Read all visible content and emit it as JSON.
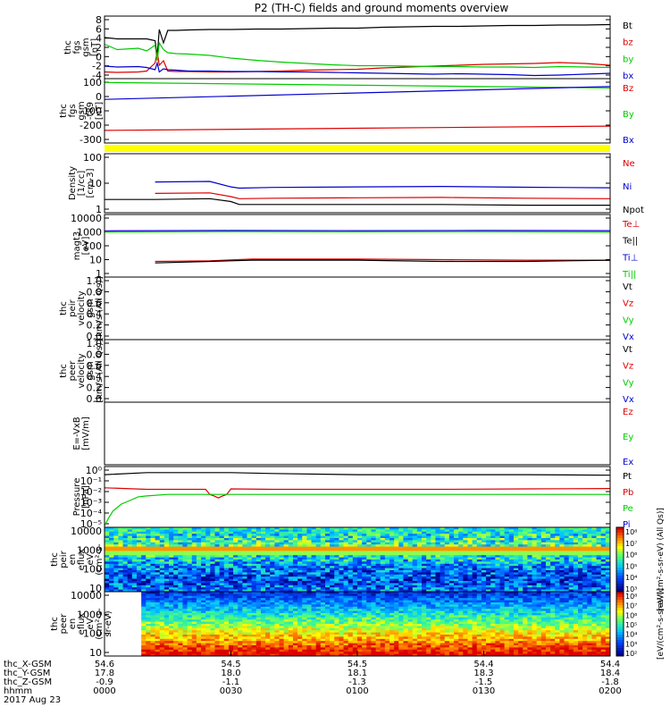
{
  "title": "P2 (TH-C) fields and ground moments overview",
  "colors": {
    "black": "#000000",
    "red": "#dd0000",
    "green": "#00cc00",
    "blue": "#0000cc",
    "yellow": "#ffff00"
  },
  "chart_data": [
    {
      "id": "fgs-nt",
      "type": "line",
      "ylabel_lines": [
        "thc",
        "fgs",
        "gsm",
        "[nT]"
      ],
      "yticks": [
        "8",
        "6",
        "4",
        "2",
        "0",
        "-2",
        "-4"
      ],
      "ylim": [
        -5,
        9
      ],
      "series": [
        {
          "name": "Bt",
          "color": "black",
          "x": [
            0,
            3,
            10,
            12,
            12.5,
            13,
            14,
            15,
            17,
            20,
            25,
            30,
            36,
            42,
            48,
            54,
            60,
            66,
            72,
            78,
            84,
            90,
            96,
            102,
            108,
            114,
            120
          ],
          "y": [
            4.2,
            3.9,
            3.9,
            3.5,
            0,
            6,
            3,
            5.8,
            5.8,
            5.9,
            6,
            6,
            6.1,
            6.1,
            6.2,
            6.3,
            6.3,
            6.5,
            6.6,
            6.7,
            6.7,
            6.8,
            6.9,
            6.9,
            7,
            7,
            7.1
          ]
        },
        {
          "name": "bz",
          "color": "red",
          "x": [
            0,
            3,
            8,
            10,
            12,
            12.5,
            13,
            14,
            15,
            17,
            20,
            25,
            30,
            36,
            42,
            48,
            54,
            60,
            66,
            72,
            78,
            84,
            90,
            96,
            102,
            108,
            114,
            120
          ],
          "y": [
            -3.5,
            -3.6,
            -3.5,
            -3.3,
            -1.5,
            1,
            -2,
            -1,
            -3.3,
            -3.4,
            -3.4,
            -3.5,
            -3.5,
            -3.4,
            -3.3,
            -3.1,
            -3,
            -2.9,
            -2.6,
            -2.4,
            -2.2,
            -2,
            -1.8,
            -1.7,
            -1.6,
            -1.4,
            -1.6,
            -2
          ]
        },
        {
          "name": "by",
          "color": "green",
          "x": [
            0,
            3,
            8,
            10,
            12,
            12.5,
            13,
            14,
            15,
            17,
            20,
            25,
            30,
            36,
            42,
            48,
            54,
            60,
            66,
            72,
            78,
            84,
            90,
            96,
            102,
            108,
            114,
            120
          ],
          "y": [
            2.7,
            1.5,
            1.8,
            1.2,
            2.5,
            -1,
            3,
            1.5,
            0.8,
            0.6,
            0.5,
            0.2,
            -0.4,
            -0.9,
            -1.3,
            -1.6,
            -1.9,
            -2.1,
            -2.1,
            -2.2,
            -2.3,
            -2.3,
            -2.4,
            -2.4,
            -2.5,
            -2.3,
            -2.4,
            -2.5
          ]
        },
        {
          "name": "bx",
          "color": "blue",
          "x": [
            0,
            3,
            8,
            10,
            12,
            12.5,
            13,
            14,
            15,
            17,
            20,
            25,
            30,
            36,
            42,
            48,
            54,
            60,
            66,
            72,
            78,
            84,
            90,
            96,
            102,
            108,
            114,
            120
          ],
          "y": [
            -2.2,
            -2.4,
            -2.3,
            -2.5,
            -3,
            -1.5,
            -3.5,
            -2.8,
            -3,
            -3.1,
            -3.3,
            -3.3,
            -3.4,
            -3.4,
            -3.5,
            -3.5,
            -3.6,
            -3.7,
            -3.8,
            -3.9,
            -4,
            -3.9,
            -4,
            -4.1,
            -4.3,
            -4.2,
            -4,
            -3.8
          ]
        }
      ]
    },
    {
      "id": "fgs-t89",
      "type": "line",
      "ylabel_lines": [
        "thc",
        "fgs",
        "gsm",
        "-t89",
        "[nT]"
      ],
      "yticks": [
        "100",
        "0",
        "-100",
        "-200",
        "-300"
      ],
      "ylim": [
        -340,
        110
      ],
      "series": [
        {
          "name": "Bz",
          "color": "red",
          "x": [
            0,
            120
          ],
          "y": [
            -252,
            -222
          ]
        },
        {
          "name": "By",
          "color": "green",
          "x": [
            0,
            120
          ],
          "y": [
            83,
            45
          ]
        },
        {
          "name": "Bx",
          "color": "blue",
          "x": [
            0,
            120
          ],
          "y": [
            -35,
            55
          ]
        }
      ]
    },
    {
      "id": "density",
      "type": "line",
      "log": true,
      "ylabel_lines": [
        "Density",
        "[1/cc]",
        "[cm-3]"
      ],
      "yticks": [
        "100",
        "10",
        "1"
      ],
      "ylim": [
        1,
        100
      ],
      "series": [
        {
          "name": "Ne",
          "color": "red",
          "x": [
            12,
            25,
            30,
            32,
            40,
            60,
            80,
            100,
            120
          ],
          "y": [
            4.5,
            4.7,
            3.5,
            3,
            3.1,
            3.2,
            3.3,
            3.1,
            3
          ]
        },
        {
          "name": "Ni",
          "color": "blue",
          "x": [
            12,
            25,
            30,
            32,
            40,
            60,
            80,
            100,
            120
          ],
          "y": [
            11,
            11.5,
            7.5,
            6.8,
            7.2,
            7.5,
            7.8,
            7.3,
            7
          ]
        },
        {
          "name": "Npot",
          "color": "black",
          "x": [
            0,
            12,
            25,
            30,
            32,
            40,
            60,
            80,
            100,
            120
          ],
          "y": [
            2.8,
            2.8,
            3,
            2.4,
            1.9,
            1.9,
            1.9,
            1.9,
            1.8,
            1.8
          ]
        }
      ]
    },
    {
      "id": "temperature",
      "type": "line",
      "log": true,
      "ylabel_lines": [
        "magt3",
        "[eV]"
      ],
      "yticks": [
        "10000",
        "1000",
        "100",
        "10",
        "1"
      ],
      "ylim": [
        1,
        10000
      ],
      "series": [
        {
          "name": "Te⊥",
          "color": "red",
          "x": [
            12,
            25,
            35,
            60,
            80,
            100,
            120
          ],
          "y": [
            10,
            11,
            14,
            14,
            13,
            12,
            12
          ]
        },
        {
          "name": "Te||",
          "color": "black",
          "x": [
            12,
            25,
            35,
            60,
            80,
            100,
            120
          ],
          "y": [
            8,
            10,
            12,
            12,
            10,
            10,
            12
          ]
        },
        {
          "name": "Ti⊥",
          "color": "blue",
          "x": [
            0,
            30,
            60,
            90,
            120
          ],
          "y": [
            900,
            950,
            930,
            950,
            920
          ]
        },
        {
          "name": "Ti||",
          "color": "green",
          "x": [
            0,
            30,
            60,
            90,
            120
          ],
          "y": [
            750,
            800,
            780,
            790,
            760
          ]
        }
      ]
    },
    {
      "id": "peir-velocity",
      "type": "line",
      "ylabel_lines": [
        "thc",
        "peir",
        "velocity",
        "gsm",
        "[km/s (All Qs)]"
      ],
      "yticks": [
        "1.0",
        "0.8",
        "0.6",
        "0.4",
        "0.2",
        "0.0"
      ],
      "ylim": [
        0,
        1
      ],
      "series": [
        {
          "name": "Vt",
          "color": "black",
          "x": [],
          "y": []
        },
        {
          "name": "Vz",
          "color": "red",
          "x": [],
          "y": []
        },
        {
          "name": "Vy",
          "color": "green",
          "x": [],
          "y": []
        },
        {
          "name": "Vx",
          "color": "blue",
          "x": [],
          "y": []
        }
      ]
    },
    {
      "id": "peer-velocity",
      "type": "line",
      "ylabel_lines": [
        "thc",
        "peer",
        "velocity",
        "gsm",
        "[km/s (All Qs)]"
      ],
      "yticks": [
        "1.0",
        "0.8",
        "0.6",
        "0.4",
        "0.2",
        "0.0"
      ],
      "ylim": [
        0,
        1
      ],
      "series": [
        {
          "name": "Vt",
          "color": "black",
          "x": [],
          "y": []
        },
        {
          "name": "Vz",
          "color": "red",
          "x": [],
          "y": []
        },
        {
          "name": "Vy",
          "color": "green",
          "x": [],
          "y": []
        },
        {
          "name": "Vx",
          "color": "blue",
          "x": [],
          "y": []
        }
      ]
    },
    {
      "id": "efield",
      "type": "line",
      "ylabel_lines": [
        "E=-VxB",
        "[mV/m]"
      ],
      "yticks": [],
      "ylim": [
        0,
        1
      ],
      "series": [
        {
          "name": "Ez",
          "color": "red",
          "x": [],
          "y": []
        },
        {
          "name": "Ey",
          "color": "green",
          "x": [],
          "y": []
        },
        {
          "name": "Ex",
          "color": "blue",
          "x": [],
          "y": []
        }
      ]
    },
    {
      "id": "pressure",
      "type": "line",
      "log": true,
      "ylabel_lines": [
        "Pressure",
        "[nPa]"
      ],
      "yticks": [
        "10⁰",
        "10⁻¹",
        "10⁻²",
        "10⁻³",
        "10⁻⁴",
        "10⁻⁵"
      ],
      "ylim": [
        6e-06,
        1
      ],
      "series": [
        {
          "name": "Pt",
          "color": "black",
          "x": [
            0,
            10,
            20,
            30,
            40,
            60,
            80,
            100,
            120
          ],
          "y": [
            0.2,
            0.3,
            0.3,
            0.3,
            0.25,
            0.2,
            0.2,
            0.2,
            0.18
          ]
        },
        {
          "name": "Pb",
          "color": "red",
          "x": [
            0,
            10,
            20,
            24,
            25,
            26,
            27,
            28,
            29,
            30,
            40,
            60,
            80,
            100,
            120
          ],
          "y": [
            0.015,
            0.011,
            0.011,
            0.011,
            0.004,
            0.003,
            0.002,
            0.003,
            0.004,
            0.012,
            0.011,
            0.011,
            0.011,
            0.012,
            0.013
          ]
        },
        {
          "name": "Pe",
          "color": "green",
          "x": [
            0,
            1,
            2,
            4,
            6,
            8,
            10,
            15,
            30,
            60,
            90,
            120
          ],
          "y": [
            8e-06,
            4e-05,
            0.00015,
            0.0006,
            0.0012,
            0.0025,
            0.003,
            0.004,
            0.004,
            0.004,
            0.004,
            0.004
          ]
        },
        {
          "name": "Pi",
          "color": "blue",
          "x": [],
          "y": []
        }
      ]
    },
    {
      "id": "peir-spec",
      "type": "heatmap",
      "ylabel_lines": [
        "thc",
        "peir",
        "en",
        "eflux",
        "eV",
        "(cm²-s-",
        "sr-eV)"
      ],
      "yticks": [
        "10000",
        "1000",
        "100",
        "10"
      ],
      "ylim": [
        5,
        30000
      ],
      "colorbar_label": "[eV/(cm²-s-sr-eV) (All Qs)]",
      "colorbar_ticks": [
        "10⁸",
        "10⁷",
        "10⁶",
        "10⁵",
        "10⁴",
        "10³"
      ]
    },
    {
      "id": "peer-spec",
      "type": "heatmap",
      "ylabel_lines": [
        "thc",
        "peer",
        "en",
        "eflux",
        "eV",
        "(cm²-s-",
        "sr-eV)"
      ],
      "yticks": [
        "10000",
        "1000",
        "100",
        "10"
      ],
      "ylim": [
        5,
        30000
      ],
      "colorbar_label": "[eV/(cm²-s-sr-eV)]",
      "colorbar_ticks": [
        "10⁸",
        "10⁷",
        "10⁶",
        "10⁵",
        "10⁴",
        "10³",
        "10²"
      ]
    }
  ],
  "xaxis": {
    "row_labels": [
      "thc_X-GSM",
      "thc_Y-GSM",
      "thc_Z-GSM",
      "hhmm",
      "2017 Aug 23"
    ],
    "columns": [
      {
        "x": 0,
        "rows": [
          "54.6",
          "17.8",
          "-0.9",
          "0000"
        ]
      },
      {
        "x": 30,
        "rows": [
          "54.5",
          "18.0",
          "-1.1",
          "0030"
        ]
      },
      {
        "x": 60,
        "rows": [
          "54.5",
          "18.1",
          "-1.3",
          "0100"
        ]
      },
      {
        "x": 90,
        "rows": [
          "54.4",
          "18.3",
          "-1.5",
          "0130"
        ]
      },
      {
        "x": 120,
        "rows": [
          "54.4",
          "18.4",
          "-1.8",
          "0200"
        ]
      }
    ]
  }
}
